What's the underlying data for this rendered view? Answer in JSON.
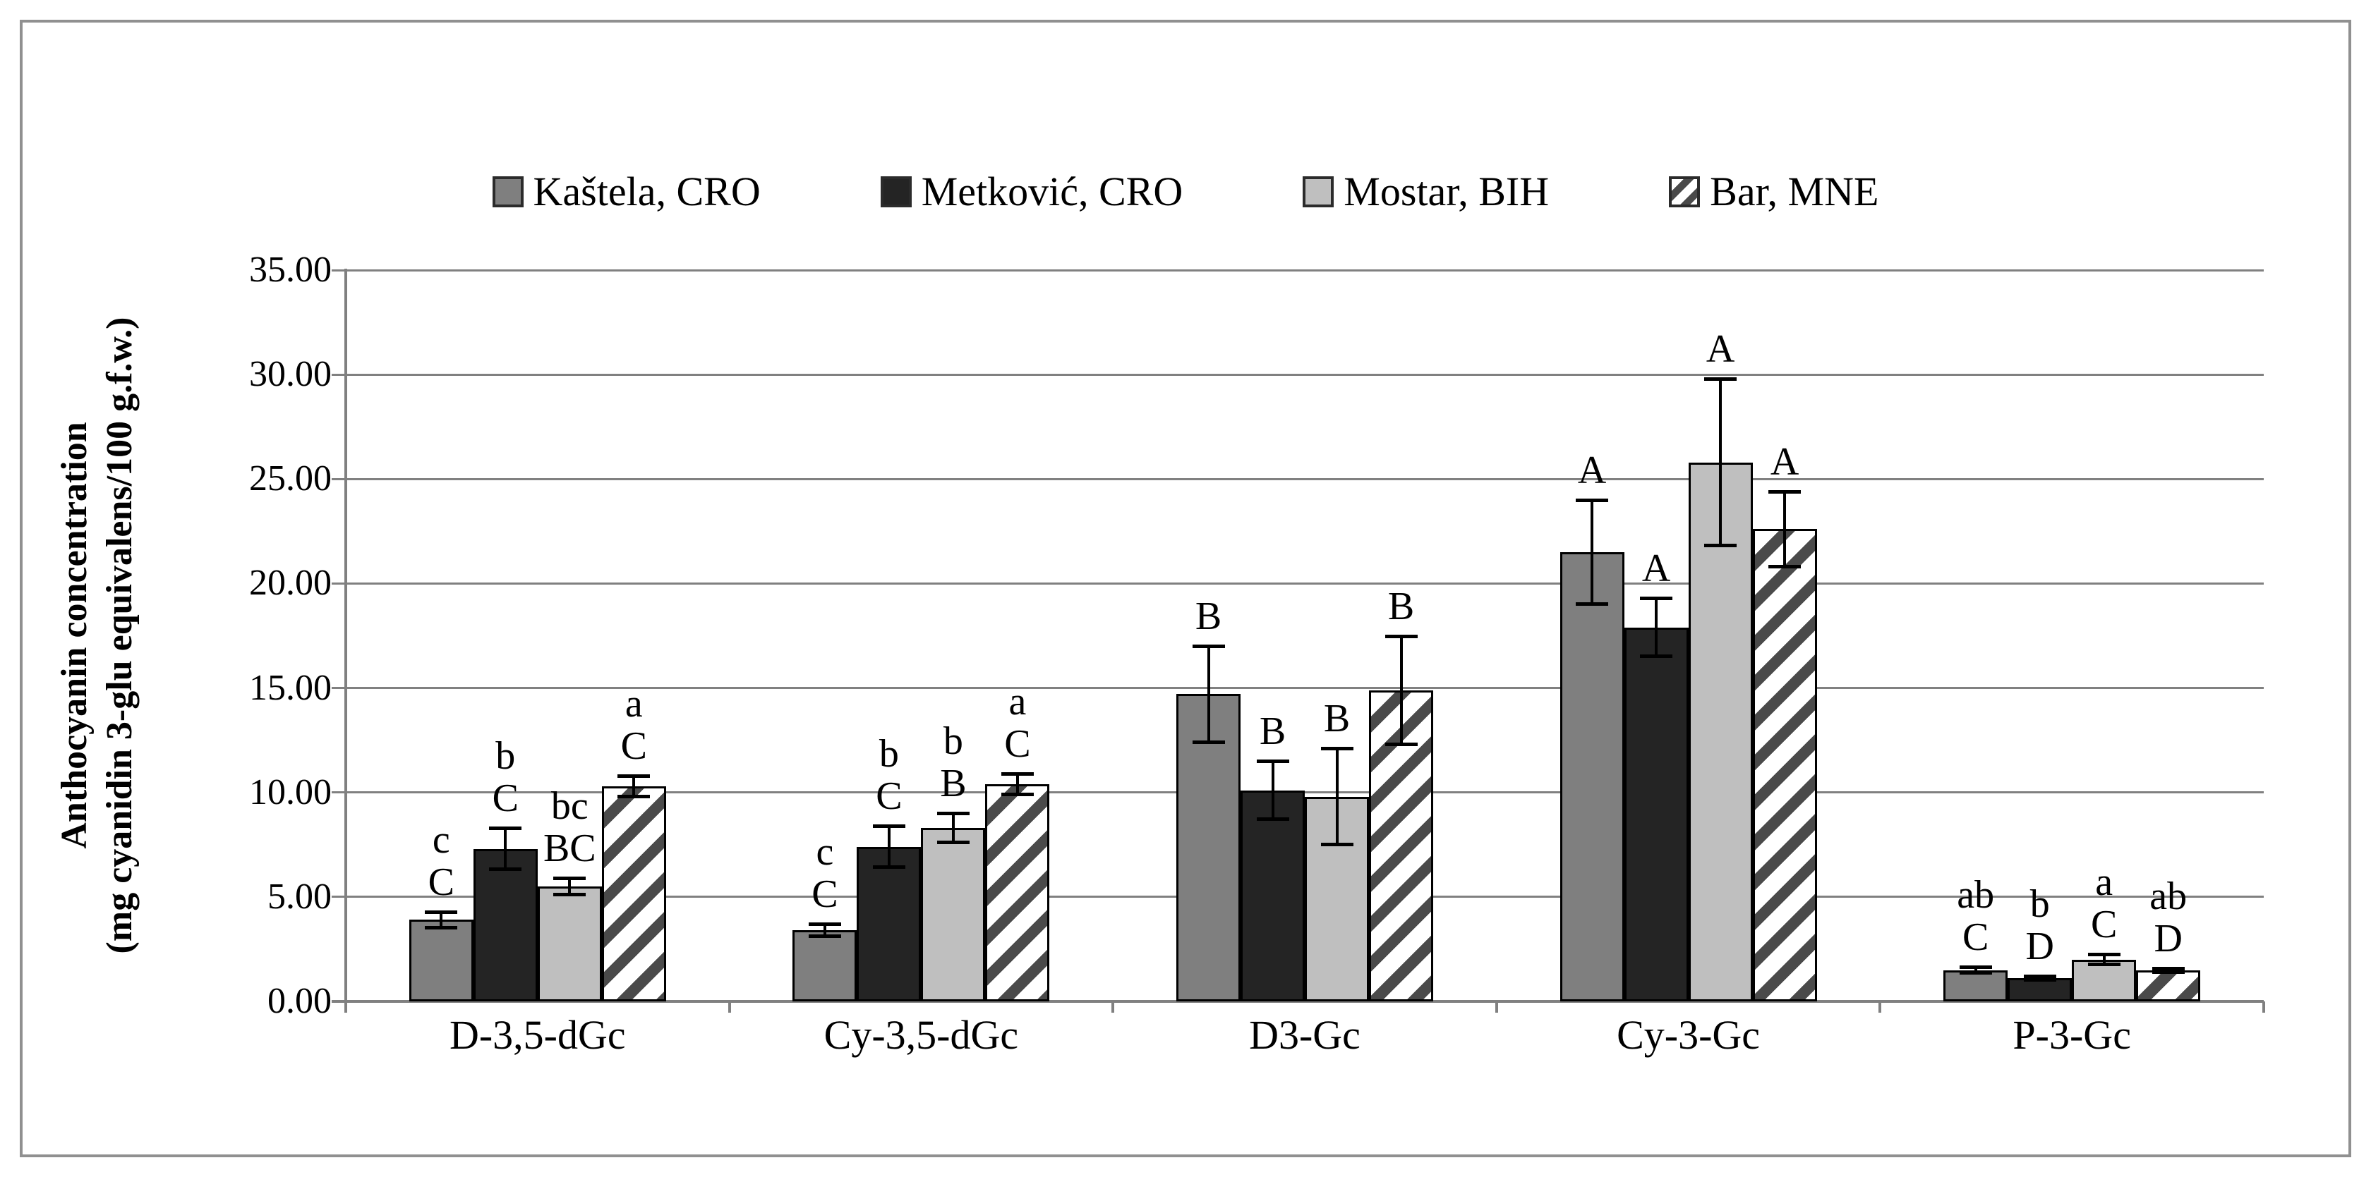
{
  "figure": {
    "frame_color": "#909090",
    "y_axis_title_line1": "Anthocyanin concentration",
    "y_axis_title_line2": "(mg cyanidin 3-glu equivalens/100 g.f.w.)"
  },
  "chart_data": {
    "type": "bar",
    "title": "",
    "xlabel": "",
    "ylabel": "Anthocyanin concentration (mg cyanidin 3-glu equivalens/100 g.f.w.)",
    "ylim": [
      0,
      35
    ],
    "ytick_step": 5,
    "ytick_labels": [
      "0.00",
      "5.00",
      "10.00",
      "15.00",
      "20.00",
      "25.00",
      "30.00",
      "35.00"
    ],
    "grid": true,
    "grid_color": "#808080",
    "legend_position": "top",
    "bar_border_color": "#000000",
    "categories": [
      "D-3,5-dGc",
      "Cy-3,5-dGc",
      "D3-Gc",
      "Cy-3-Gc",
      "P-3-Gc"
    ],
    "series": [
      {
        "name": "Kaštela, CRO",
        "color": "#7f7f7f",
        "pattern": "solid",
        "values": [
          3.9,
          3.4,
          14.7,
          21.5,
          1.5
        ],
        "errors": [
          0.4,
          0.3,
          2.3,
          2.5,
          0.15
        ],
        "letters": [
          [
            "c",
            "C"
          ],
          [
            "c",
            "C"
          ],
          [
            "B"
          ],
          [
            "A"
          ],
          [
            "ab",
            "C"
          ]
        ]
      },
      {
        "name": "Metković, CRO",
        "color": "#242424",
        "pattern": "solid",
        "values": [
          7.3,
          7.4,
          10.1,
          17.9,
          1.1
        ],
        "errors": [
          1.0,
          1.0,
          1.4,
          1.4,
          0.1
        ],
        "letters": [
          [
            "b",
            "C"
          ],
          [
            "b",
            "C"
          ],
          [
            "B"
          ],
          [
            "A"
          ],
          [
            "b",
            "D"
          ]
        ]
      },
      {
        "name": "Mostar, BIH",
        "color": "#bfbfbf",
        "pattern": "solid",
        "values": [
          5.5,
          8.3,
          9.8,
          25.8,
          2.0
        ],
        "errors": [
          0.4,
          0.7,
          2.3,
          4.0,
          0.25
        ],
        "letters": [
          [
            "bc",
            "BC"
          ],
          [
            "b",
            "B"
          ],
          [
            "B"
          ],
          [
            "A"
          ],
          [
            "a",
            "C"
          ]
        ]
      },
      {
        "name": "Bar, MNE",
        "color": "#ffffff",
        "pattern": "diagonal-hatch",
        "hatch_color": "#4a4a4a",
        "values": [
          10.3,
          10.4,
          14.9,
          22.6,
          1.5
        ],
        "errors": [
          0.5,
          0.5,
          2.6,
          1.8,
          0.1
        ],
        "letters": [
          [
            "a",
            "C"
          ],
          [
            "a",
            "C"
          ],
          [
            "B"
          ],
          [
            "A"
          ],
          [
            "ab",
            "D"
          ]
        ]
      }
    ]
  }
}
